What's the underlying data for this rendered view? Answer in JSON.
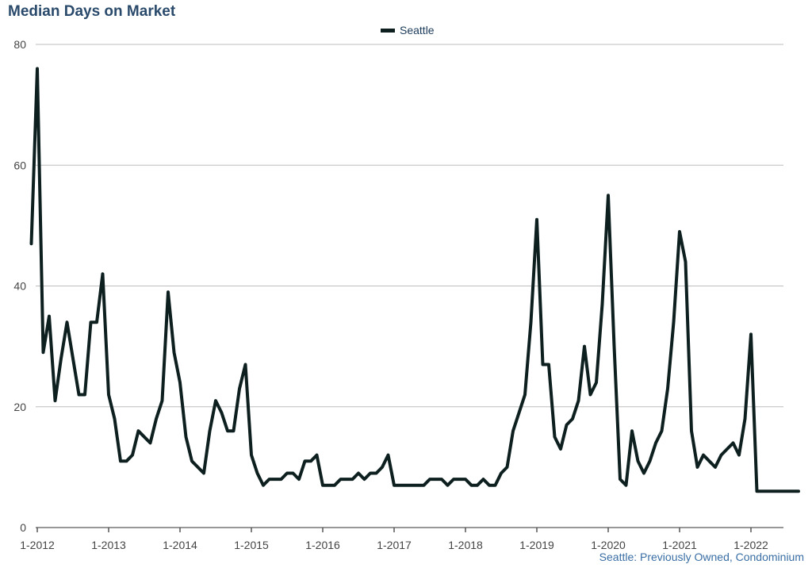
{
  "chart_data": {
    "type": "line",
    "title": "Median Days on Market",
    "footnote": "Seattle: Previously Owned, Condominium",
    "legend": {
      "placement": "top-center",
      "entries": [
        "Seattle"
      ]
    },
    "xlabel": "",
    "ylabel": "",
    "ylim": [
      0,
      80
    ],
    "y_ticks": [
      "0",
      "20",
      "40",
      "60",
      "80"
    ],
    "x_ticks": [
      "1-2012",
      "1-2013",
      "1-2014",
      "1-2015",
      "1-2016",
      "1-2017",
      "1-2018",
      "1-2019",
      "1-2020",
      "1-2021",
      "1-2022"
    ],
    "grid": true,
    "line_color": "#0d1f1f",
    "series": [
      {
        "name": "Seattle",
        "start": "12-2011",
        "values": [
          47,
          76,
          29,
          35,
          21,
          28,
          34,
          28,
          22,
          22,
          34,
          34,
          42,
          22,
          18,
          11,
          11,
          12,
          16,
          15,
          14,
          18,
          21,
          39,
          29,
          24,
          15,
          11,
          10,
          9,
          16,
          21,
          19,
          16,
          16,
          23,
          27,
          12,
          9,
          7,
          8,
          8,
          8,
          9,
          9,
          8,
          11,
          11,
          12,
          7,
          7,
          7,
          8,
          8,
          8,
          9,
          8,
          9,
          9,
          10,
          12,
          7,
          7,
          7,
          7,
          7,
          7,
          8,
          8,
          8,
          7,
          8,
          8,
          8,
          7,
          7,
          8,
          7,
          7,
          9,
          10,
          16,
          19,
          22,
          34,
          51,
          27,
          27,
          15,
          13,
          17,
          18,
          21,
          30,
          22,
          24,
          37,
          55,
          30,
          8,
          7,
          16,
          11,
          9,
          11,
          14,
          16,
          23,
          34,
          49,
          44,
          16,
          10,
          12,
          11,
          10,
          12,
          13,
          14,
          12,
          18,
          32,
          6,
          6,
          6,
          6,
          6,
          6,
          6,
          6
        ]
      }
    ]
  }
}
